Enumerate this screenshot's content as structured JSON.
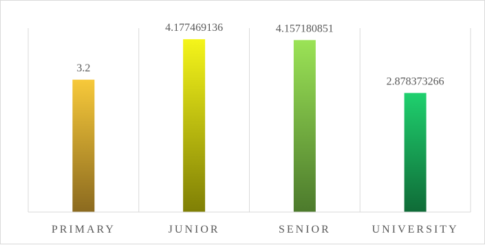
{
  "chart_data": {
    "type": "bar",
    "categories": [
      "PRIMARY",
      "JUNIOR",
      "SENIOR",
      "UNIVERSITY"
    ],
    "values": [
      3.2,
      4.177469136,
      4.157180851,
      2.878373266
    ],
    "data_labels": [
      "3.2",
      "4.177469136",
      "4.157180851",
      "2.878373266"
    ],
    "ylim": [
      0,
      4.5
    ],
    "grid": "vertical category dividers",
    "legend": "none",
    "bar_gradients": [
      {
        "top": "#f7c93a",
        "bottom": "#8b6a1f"
      },
      {
        "top": "#f5f51a",
        "bottom": "#7f7f05"
      },
      {
        "top": "#9be356",
        "bottom": "#4c7a2c"
      },
      {
        "top": "#1fd06e",
        "bottom": "#0f6b37"
      }
    ],
    "axis_color": "#d9d9d9",
    "label_color": "#595959"
  }
}
